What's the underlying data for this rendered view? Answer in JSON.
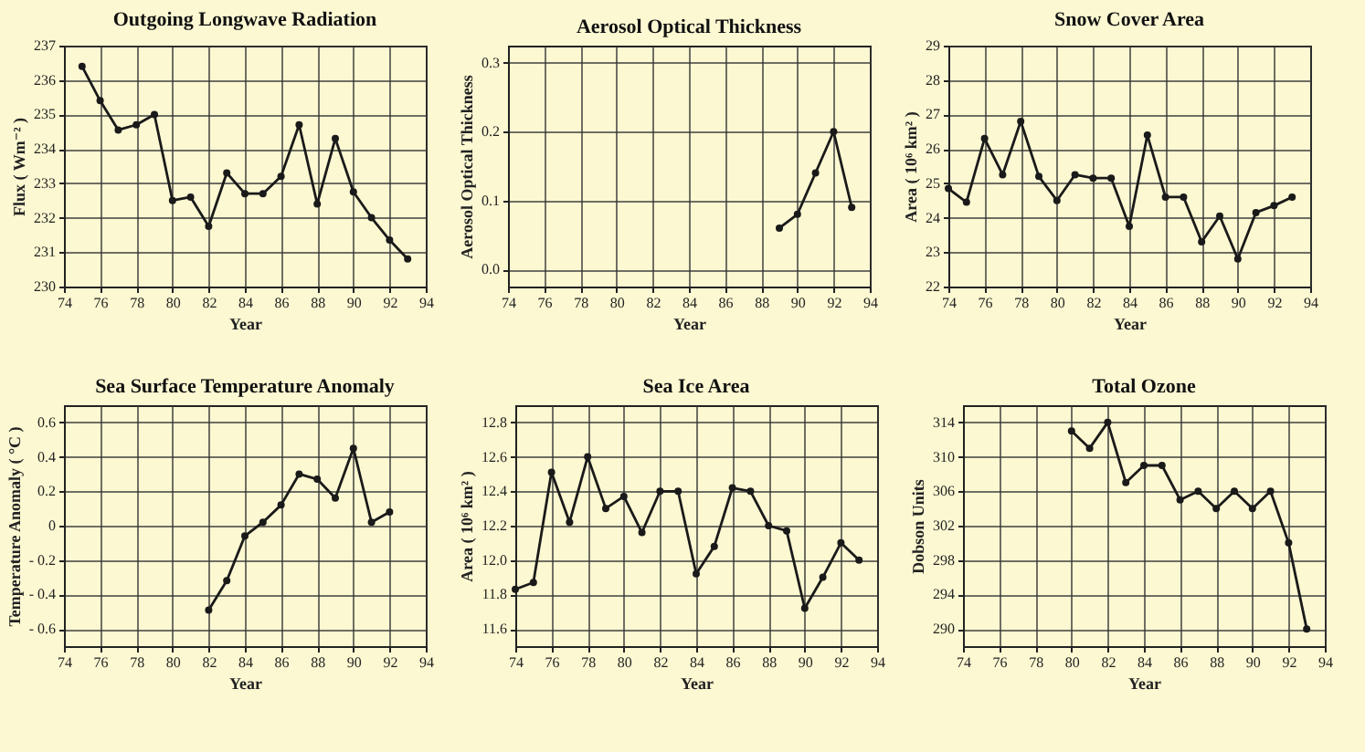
{
  "chart_data": [
    {
      "type": "line",
      "title": "Outgoing Longwave Radiation",
      "xlabel": "Year",
      "ylabel": "Flux ( Wm⁻² )",
      "x": [
        75,
        76,
        77,
        78,
        79,
        80,
        81,
        82,
        83,
        84,
        85,
        86,
        87,
        88,
        89,
        90,
        91,
        92,
        93
      ],
      "series": [
        {
          "color": "#1a1a1a",
          "values": [
            236.4,
            235.4,
            234.55,
            234.7,
            235.0,
            232.5,
            232.6,
            231.75,
            233.3,
            232.7,
            232.7,
            233.2,
            234.7,
            232.4,
            234.3,
            232.75,
            232.0,
            231.35,
            230.8
          ]
        }
      ],
      "xlim": [
        74,
        94
      ],
      "xticks": [
        74,
        76,
        78,
        80,
        82,
        84,
        86,
        88,
        90,
        92,
        94
      ],
      "ylim": [
        230,
        237
      ],
      "yticks": [
        230,
        231,
        232,
        233,
        234,
        235,
        236,
        237
      ],
      "grid": true,
      "marker": "circle",
      "line_style": "solid"
    },
    {
      "type": "line",
      "title": "Aerosol Optical Thickness",
      "xlabel": "Year",
      "ylabel": "Aerosol Optical Thickness",
      "x": [
        89,
        90,
        91,
        92,
        93
      ],
      "series": [
        {
          "color": "#1a1a1a",
          "values": [
            0.06,
            0.08,
            0.14,
            0.2,
            0.09
          ]
        }
      ],
      "xlim": [
        74,
        94
      ],
      "xticks": [
        74,
        76,
        78,
        80,
        82,
        84,
        86,
        88,
        90,
        92,
        94
      ],
      "ylim": [
        -0.025,
        0.325
      ],
      "yticks": [
        {
          "value": 0,
          "label": "0.0"
        },
        0.1,
        0.2,
        0.3
      ],
      "grid": true,
      "marker": "circle",
      "line_style": "solid"
    },
    {
      "type": "line",
      "title": "Snow Cover Area",
      "xlabel": "Year",
      "ylabel": "Area ( 10⁶ km² )",
      "x": [
        74,
        75,
        76,
        77,
        78,
        79,
        80,
        81,
        82,
        83,
        84,
        85,
        86,
        87,
        88,
        89,
        90,
        91,
        92,
        93
      ],
      "series": [
        {
          "color": "#1a1a1a",
          "values": [
            24.85,
            24.45,
            26.3,
            25.25,
            26.8,
            25.2,
            24.5,
            25.25,
            25.15,
            25.15,
            23.75,
            26.4,
            24.6,
            24.6,
            23.3,
            24.05,
            22.8,
            24.15,
            24.35,
            24.6
          ]
        }
      ],
      "xlim": [
        74,
        94
      ],
      "xticks": [
        74,
        76,
        78,
        80,
        82,
        84,
        86,
        88,
        90,
        92,
        94
      ],
      "ylim": [
        22,
        29
      ],
      "yticks": [
        22,
        23,
        24,
        25,
        26,
        27,
        28,
        29
      ],
      "grid": true,
      "marker": "circle",
      "line_style": "solid"
    },
    {
      "type": "line",
      "title": "Sea Surface Temperature Anomaly",
      "xlabel": "Year",
      "ylabel": "Temperature Anomaly ( °C )",
      "x": [
        82,
        83,
        84,
        85,
        86,
        87,
        88,
        89,
        90,
        91,
        92
      ],
      "series": [
        {
          "color": "#1a1a1a",
          "values": [
            -0.49,
            -0.32,
            -0.06,
            0.02,
            0.12,
            0.3,
            0.27,
            0.16,
            0.45,
            0.02,
            0.08
          ]
        }
      ],
      "xlim": [
        74,
        94
      ],
      "xticks": [
        74,
        76,
        78,
        80,
        82,
        84,
        86,
        88,
        90,
        92,
        94
      ],
      "ylim": [
        -0.7,
        0.7
      ],
      "yticks": [
        {
          "value": -0.6,
          "label": "- 0.6"
        },
        {
          "value": -0.4,
          "label": "- 0.4"
        },
        {
          "value": -0.2,
          "label": "- 0.2"
        },
        0,
        0.2,
        0.4,
        0.6
      ],
      "grid": true,
      "marker": "circle",
      "line_style": "solid"
    },
    {
      "type": "line",
      "title": "Sea Ice Area",
      "xlabel": "Year",
      "ylabel": "Area ( 10⁶ km² )",
      "x": [
        74,
        75,
        76,
        77,
        78,
        79,
        80,
        81,
        82,
        83,
        84,
        85,
        86,
        87,
        88,
        89,
        90,
        91,
        92,
        93
      ],
      "series": [
        {
          "color": "#1a1a1a",
          "values": [
            11.83,
            11.87,
            12.51,
            12.22,
            12.6,
            12.3,
            12.37,
            12.16,
            12.4,
            12.4,
            11.92,
            12.08,
            12.42,
            12.4,
            12.2,
            12.17,
            11.72,
            11.9,
            12.1,
            12.0
          ]
        }
      ],
      "xlim": [
        74,
        94
      ],
      "xticks": [
        74,
        76,
        78,
        80,
        82,
        84,
        86,
        88,
        90,
        92,
        94
      ],
      "ylim": [
        11.5,
        12.9
      ],
      "yticks": [
        11.6,
        11.8,
        {
          "value": 12,
          "label": "12.0"
        },
        12.2,
        12.4,
        12.6,
        12.8
      ],
      "grid": true,
      "marker": "circle",
      "line_style": "solid"
    },
    {
      "type": "line",
      "title": "Total Ozone",
      "xlabel": "Year",
      "ylabel": "Dobson Units",
      "x": [
        80,
        81,
        82,
        83,
        84,
        85,
        86,
        87,
        88,
        89,
        90,
        91,
        92,
        93
      ],
      "series": [
        {
          "color": "#1a1a1a",
          "values": [
            313,
            311,
            314,
            307,
            309,
            309,
            305,
            306,
            304,
            306,
            304,
            306,
            300,
            290
          ]
        }
      ],
      "xlim": [
        74,
        94
      ],
      "xticks": [
        74,
        76,
        78,
        80,
        82,
        84,
        86,
        88,
        90,
        92,
        94
      ],
      "ylim": [
        288,
        316
      ],
      "yticks": [
        290,
        294,
        298,
        302,
        306,
        310,
        314
      ],
      "grid": true,
      "marker": "circle",
      "line_style": "solid"
    }
  ]
}
